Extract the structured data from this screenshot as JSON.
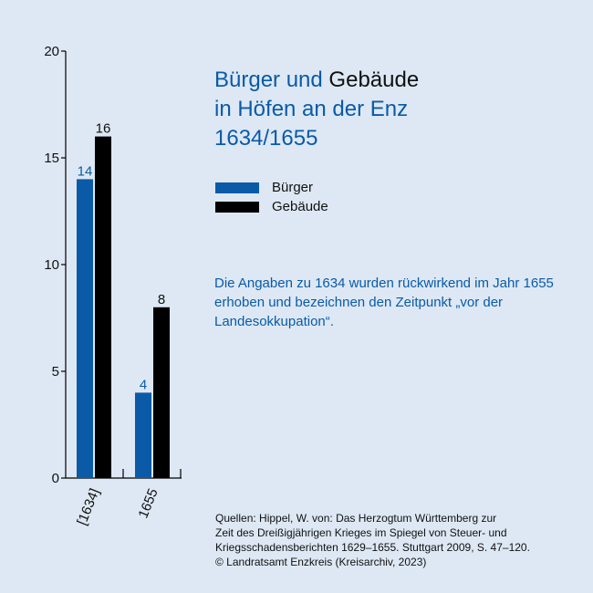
{
  "title": {
    "line1_blue": "Bürger und",
    "line1_dark": "Gebäude",
    "line2": "in Höfen an der Enz",
    "line3": "1634/1655"
  },
  "colors": {
    "buerger": "#0a5aa8",
    "gebaeude": "#000000",
    "background": "#dde8f4"
  },
  "note": "Die Angaben zu 1634 wurden rückwirkend im Jahr 1655 erhoben und bezeichnen den Zeitpunkt „vor der Landesokkupation“.",
  "sources": [
    "Quellen: Hippel, W. von: Das Herzogtum Württemberg zur",
    "Zeit des Dreißigjährigen Krieges im Spiegel von Steuer- und",
    "Kriegsschadensberichten 1629–1655. Stuttgart 2009, S. 47–120.",
    "© Landratsamt Enzkreis (Kreisarchiv, 2023)"
  ],
  "chart_data": {
    "type": "bar",
    "title": "Bürger und Gebäude in Höfen an der Enz 1634/1655",
    "categories": [
      "[1634]",
      "1655"
    ],
    "series": [
      {
        "name": "Bürger",
        "values": [
          14,
          4
        ],
        "color": "#0a5aa8"
      },
      {
        "name": "Gebäude",
        "values": [
          16,
          8
        ],
        "color": "#000000"
      }
    ],
    "ylim": [
      0,
      20
    ],
    "yticks": [
      0,
      5,
      10,
      15,
      20
    ],
    "grid": false,
    "legend": "right"
  }
}
